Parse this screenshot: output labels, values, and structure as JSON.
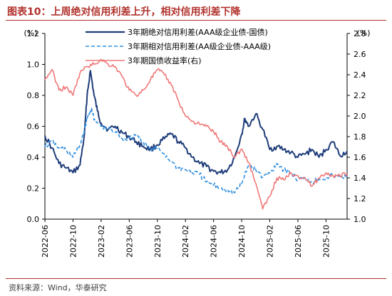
{
  "title": "图表10：上周绝对信用利差上升，相对信用利差下降",
  "source": "资料来源：Wind，华泰研究",
  "chart_data": {
    "type": "line",
    "y_left": {
      "unit": "(%)",
      "range": [
        0,
        1.2
      ],
      "ticks": [
        "0.0",
        "0.2",
        "0.4",
        "0.6",
        "0.8",
        "1.0",
        "1.2"
      ]
    },
    "y_right": {
      "unit": "(%)",
      "range": [
        1.0,
        2.8
      ],
      "ticks": [
        "1.0",
        "1.2",
        "1.4",
        "1.6",
        "1.8",
        "2.0",
        "2.2",
        "2.4",
        "2.6",
        "2.8"
      ]
    },
    "x_ticks": [
      "2022-06",
      "2022-10",
      "2023-02",
      "2023-06",
      "2023-10",
      "2024-02",
      "2024-06",
      "2024-10",
      "2025-02",
      "2025-06",
      "2025-10"
    ],
    "x_start": "2022-06",
    "x_end": "2026-01",
    "grid": false,
    "legend_position": "top",
    "series": [
      {
        "name": "3年期绝对信用利差(AAA级企业债-国债)",
        "axis": "left",
        "color": "#1f3d7a",
        "style": "solid",
        "points": [
          [
            "2022-06",
            0.54
          ],
          [
            "2022-07",
            0.46
          ],
          [
            "2022-08",
            0.36
          ],
          [
            "2022-09",
            0.33
          ],
          [
            "2022-10",
            0.3
          ],
          [
            "2022-11",
            0.35
          ],
          [
            "2022-11-20",
            0.55
          ],
          [
            "2022-12",
            0.8
          ],
          [
            "2022-12-15",
            0.96
          ],
          [
            "2023-01",
            0.8
          ],
          [
            "2023-01-15",
            0.7
          ],
          [
            "2023-02",
            0.62
          ],
          [
            "2023-03",
            0.58
          ],
          [
            "2023-04",
            0.6
          ],
          [
            "2023-05",
            0.56
          ],
          [
            "2023-06",
            0.53
          ],
          [
            "2023-07",
            0.5
          ],
          [
            "2023-08",
            0.47
          ],
          [
            "2023-09",
            0.45
          ],
          [
            "2023-10",
            0.48
          ],
          [
            "2023-11",
            0.52
          ],
          [
            "2023-12",
            0.55
          ],
          [
            "2024-01",
            0.5
          ],
          [
            "2024-02",
            0.46
          ],
          [
            "2024-03",
            0.4
          ],
          [
            "2024-04",
            0.36
          ],
          [
            "2024-05",
            0.34
          ],
          [
            "2024-06",
            0.31
          ],
          [
            "2024-07",
            0.3
          ],
          [
            "2024-08",
            0.32
          ],
          [
            "2024-09",
            0.4
          ],
          [
            "2024-10",
            0.55
          ],
          [
            "2024-10-15",
            0.65
          ],
          [
            "2024-11",
            0.6
          ],
          [
            "2024-12",
            0.68
          ],
          [
            "2025-01",
            0.58
          ],
          [
            "2025-02",
            0.45
          ],
          [
            "2025-03",
            0.47
          ],
          [
            "2025-04",
            0.45
          ],
          [
            "2025-05",
            0.43
          ],
          [
            "2025-06",
            0.4
          ],
          [
            "2025-07",
            0.42
          ],
          [
            "2025-08",
            0.45
          ],
          [
            "2025-09",
            0.4
          ],
          [
            "2025-10",
            0.45
          ],
          [
            "2025-11",
            0.5
          ],
          [
            "2025-12",
            0.41
          ],
          [
            "2026-01",
            0.44
          ]
        ]
      },
      {
        "name": "3年期相对信用利差(AA级企业债-AAA级)",
        "axis": "left",
        "color": "#2f8fe0",
        "style": "dashed",
        "points": [
          [
            "2022-06",
            0.47
          ],
          [
            "2022-07",
            0.5
          ],
          [
            "2022-08",
            0.46
          ],
          [
            "2022-09",
            0.45
          ],
          [
            "2022-10",
            0.4
          ],
          [
            "2022-11",
            0.48
          ],
          [
            "2022-11-20",
            0.58
          ],
          [
            "2022-12",
            0.65
          ],
          [
            "2022-12-20",
            0.72
          ],
          [
            "2023-01",
            0.64
          ],
          [
            "2023-02",
            0.6
          ],
          [
            "2023-03",
            0.58
          ],
          [
            "2023-04",
            0.56
          ],
          [
            "2023-05",
            0.52
          ],
          [
            "2023-06",
            0.52
          ],
          [
            "2023-07",
            0.55
          ],
          [
            "2023-08",
            0.5
          ],
          [
            "2023-09",
            0.45
          ],
          [
            "2023-10",
            0.46
          ],
          [
            "2023-11",
            0.42
          ],
          [
            "2023-12",
            0.37
          ],
          [
            "2024-01",
            0.33
          ],
          [
            "2024-02",
            0.32
          ],
          [
            "2024-03",
            0.3
          ],
          [
            "2024-04",
            0.29
          ],
          [
            "2024-05",
            0.24
          ],
          [
            "2024-06",
            0.22
          ],
          [
            "2024-07",
            0.2
          ],
          [
            "2024-08",
            0.19
          ],
          [
            "2024-09",
            0.17
          ],
          [
            "2024-10",
            0.23
          ],
          [
            "2024-11",
            0.35
          ],
          [
            "2024-12",
            0.32
          ],
          [
            "2025-01",
            0.27
          ],
          [
            "2025-02",
            0.3
          ],
          [
            "2025-03",
            0.36
          ],
          [
            "2025-04",
            0.32
          ],
          [
            "2025-05",
            0.3
          ],
          [
            "2025-06",
            0.25
          ],
          [
            "2025-07",
            0.27
          ],
          [
            "2025-08",
            0.24
          ],
          [
            "2025-09",
            0.26
          ],
          [
            "2025-10",
            0.27
          ],
          [
            "2025-11",
            0.28
          ],
          [
            "2025-12",
            0.27
          ],
          [
            "2026-01",
            0.28
          ]
        ]
      },
      {
        "name": "3年期国债收益率(右)",
        "axis": "right",
        "color": "#f07878",
        "style": "solid",
        "points": [
          [
            "2022-06",
            2.35
          ],
          [
            "2022-07",
            2.45
          ],
          [
            "2022-08",
            2.25
          ],
          [
            "2022-09",
            2.28
          ],
          [
            "2022-10",
            2.2
          ],
          [
            "2022-11",
            2.42
          ],
          [
            "2022-12",
            2.48
          ],
          [
            "2023-01",
            2.5
          ],
          [
            "2023-02",
            2.55
          ],
          [
            "2023-03",
            2.5
          ],
          [
            "2023-04",
            2.48
          ],
          [
            "2023-05",
            2.38
          ],
          [
            "2023-06",
            2.25
          ],
          [
            "2023-07",
            2.2
          ],
          [
            "2023-08",
            2.25
          ],
          [
            "2023-09",
            2.35
          ],
          [
            "2023-10",
            2.45
          ],
          [
            "2023-11",
            2.4
          ],
          [
            "2023-12",
            2.3
          ],
          [
            "2024-01",
            2.15
          ],
          [
            "2024-02",
            2.0
          ],
          [
            "2024-03",
            1.95
          ],
          [
            "2024-04",
            1.92
          ],
          [
            "2024-05",
            1.9
          ],
          [
            "2024-06",
            1.85
          ],
          [
            "2024-07",
            1.75
          ],
          [
            "2024-08",
            1.7
          ],
          [
            "2024-09",
            1.6
          ],
          [
            "2024-10",
            1.68
          ],
          [
            "2024-11",
            1.55
          ],
          [
            "2024-12",
            1.35
          ],
          [
            "2025-01",
            1.1
          ],
          [
            "2025-02",
            1.22
          ],
          [
            "2025-03",
            1.4
          ],
          [
            "2025-04",
            1.38
          ],
          [
            "2025-05",
            1.45
          ],
          [
            "2025-06",
            1.42
          ],
          [
            "2025-07",
            1.4
          ],
          [
            "2025-08",
            1.32
          ],
          [
            "2025-09",
            1.4
          ],
          [
            "2025-10",
            1.45
          ],
          [
            "2025-11",
            1.42
          ],
          [
            "2025-12",
            1.42
          ],
          [
            "2026-01",
            1.44
          ]
        ]
      }
    ]
  }
}
